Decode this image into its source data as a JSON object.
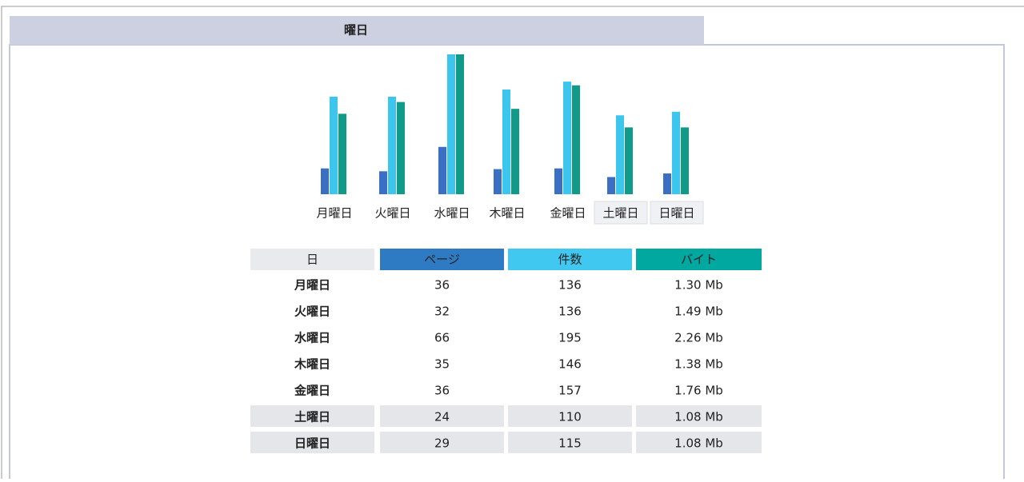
{
  "chart_data": {
    "type": "bar",
    "title": "曜日",
    "category_header": "日",
    "categories": [
      "月曜日",
      "火曜日",
      "水曜日",
      "木曜日",
      "金曜日",
      "土曜日",
      "日曜日"
    ],
    "series": [
      {
        "name": "ページ",
        "color": "#3a6fc4",
        "values": [
          36,
          32,
          66,
          35,
          36,
          24,
          29
        ]
      },
      {
        "name": "件数",
        "color": "#3cc6ee",
        "values": [
          136,
          136,
          195,
          146,
          157,
          110,
          115
        ]
      },
      {
        "name": "バイト",
        "color": "#109a8a",
        "values": [
          1.3,
          1.49,
          2.26,
          1.38,
          1.76,
          1.08,
          1.08
        ],
        "value_labels": [
          "1.30 Mb",
          "1.49 Mb",
          "2.26 Mb",
          "1.38 Mb",
          "1.76 Mb",
          "1.08 Mb",
          "1.08 Mb"
        ]
      }
    ]
  }
}
